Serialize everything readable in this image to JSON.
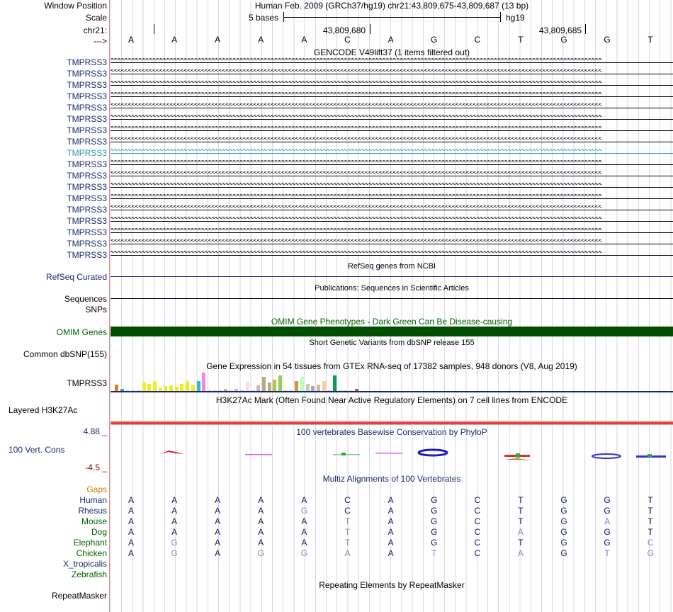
{
  "header": {
    "window_position_label": "Window Position",
    "scale_label": "Scale",
    "chrom_label": "chr21:",
    "strand_label": "--->",
    "title": "Human Feb. 2009 (GRCh37/hg19)   chr21:43,809,675-43,809,687 (13 bp)",
    "scale_text": "5 bases",
    "assembly": "hg19",
    "coord1": "43,809,680",
    "coord2": "43,809,685",
    "sequence": [
      "A",
      "A",
      "A",
      "A",
      "A",
      "C",
      "A",
      "G",
      "C",
      "T",
      "G",
      "G",
      "T"
    ]
  },
  "gencode": {
    "title": "GENCODE V49lift37 (1 items filtered out)",
    "gene": "TMPRSS3",
    "rows": [
      "TMPRSS3",
      "TMPRSS3",
      "TMPRSS3",
      "TMPRSS3",
      "TMPRSS3",
      "TMPRSS3",
      "TMPRSS3",
      "TMPRSS3",
      "TMPRSS3",
      "TMPRSS3",
      "TMPRSS3",
      "TMPRSS3",
      "TMPRSS3",
      "TMPRSS3",
      "TMPRSS3",
      "TMPRSS3",
      "TMPRSS3",
      "TMPRSS3"
    ],
    "highlighted_row": 8,
    "strand_glyphs": "<<<<<<<<<<<<<<<<<<<<<<<<<<<<<<<<<<<<<<<<<<<<<<<<<<<<<<<<<<<<<<<<<<<<<<<<<<<<<<<<<<<<<<<<<<<<<<<<<<<<<<<<<<<<<<<<<<<<<<<<<<<<<<<<<<<<<<<<<<<<<"
  },
  "refseq": {
    "title": "RefSeq genes from NCBI",
    "label": "RefSeq Curated"
  },
  "publications": {
    "title": "Publications: Sequences in Scientific Articles",
    "label": "Sequences"
  },
  "snps_label": "SNPs",
  "omim": {
    "title": "OMIM Gene Phenotypes - Dark Green Can Be Disease-causing",
    "label": "OMIM Genes",
    "color": "#004d00"
  },
  "dbsnp": {
    "title": "Short Genetic Variants from dbSNP release 155",
    "label": "Common dbSNP(155)"
  },
  "gtex": {
    "title": "Gene Expression in 54 tissues from GTEx RNA-seq of 17382 samples, 948 donors (V8, Aug 2019)",
    "label": "TMPRSS3",
    "bars": [
      {
        "h": 9,
        "c": "#e87a1c"
      },
      {
        "h": 3,
        "c": "#33aa88"
      },
      {
        "h": 1,
        "c": "#ccc"
      },
      {
        "h": 1,
        "c": "#ccc"
      },
      {
        "h": 1,
        "c": "#ccc"
      },
      {
        "h": 12,
        "c": "#eeee22"
      },
      {
        "h": 10,
        "c": "#eeee22"
      },
      {
        "h": 14,
        "c": "#eeee22"
      },
      {
        "h": 4,
        "c": "#eeee22"
      },
      {
        "h": 7,
        "c": "#eeee22"
      },
      {
        "h": 8,
        "c": "#eeee22"
      },
      {
        "h": 6,
        "c": "#eeee22"
      },
      {
        "h": 10,
        "c": "#eeee22"
      },
      {
        "h": 14,
        "c": "#eeee22"
      },
      {
        "h": 9,
        "c": "#eeee22"
      },
      {
        "h": 14,
        "c": "#33bbcc"
      },
      {
        "h": 26,
        "c": "#ee88ee"
      },
      {
        "h": 1,
        "c": "#ccc"
      },
      {
        "h": 1,
        "c": "#ccc"
      },
      {
        "h": 1,
        "c": "#ccc"
      },
      {
        "h": 3,
        "c": "#ccaaaa"
      },
      {
        "h": 1,
        "c": "#ccc"
      },
      {
        "h": 3,
        "c": "#ee99ee"
      },
      {
        "h": 1,
        "c": "#ccc"
      },
      {
        "h": 13,
        "c": "#ffdddd"
      },
      {
        "h": 1,
        "c": "#ccc"
      },
      {
        "h": 8,
        "c": "#ccbbaa"
      },
      {
        "h": 20,
        "c": "#bbaa88"
      },
      {
        "h": 12,
        "c": "#bbaa88"
      },
      {
        "h": 16,
        "c": "#aacc44"
      },
      {
        "h": 22,
        "c": "#99cc55"
      },
      {
        "h": 1,
        "c": "#ccc"
      },
      {
        "h": 1,
        "c": "#ccc"
      },
      {
        "h": 14,
        "c": "#cc9933"
      },
      {
        "h": 20,
        "c": "#bbffbb"
      },
      {
        "h": 10,
        "c": "#ccccaa"
      },
      {
        "h": 7,
        "c": "#aaaaaa"
      },
      {
        "h": 9,
        "c": "#ccbb99"
      },
      {
        "h": 14,
        "c": "#ffcc99"
      },
      {
        "h": 1,
        "c": "#ccc"
      },
      {
        "h": 22,
        "c": "#119955"
      },
      {
        "h": 1,
        "c": "#ccc"
      },
      {
        "h": 1,
        "c": "#ccc"
      },
      {
        "h": 1,
        "c": "#ccc"
      },
      {
        "h": 3,
        "c": "#aa44aa"
      }
    ]
  },
  "h3k27ac": {
    "title": "H3K27Ac Mark (Often Found Near Active Regulatory Elements) on 7 cell lines from ENCODE",
    "label": "Layered H3K27Ac",
    "color": "#e04040"
  },
  "phylop": {
    "title": "100 vertebrates Basewise Conservation by PhyloP",
    "label": "100 Vert. Cons",
    "max": "4.88 _",
    "min": "-4.5 _"
  },
  "multiz": {
    "title": "Multiz Alignments of 100 Vertebrates",
    "gaps_label": "Gaps",
    "species": [
      {
        "name": "Human",
        "color": "#1a2a6e",
        "bases": [
          "A",
          "A",
          "A",
          "A",
          "A",
          "C",
          "A",
          "G",
          "C",
          "T",
          "G",
          "G",
          "T"
        ],
        "faded": []
      },
      {
        "name": "Rhesus",
        "color": "#1a2a6e",
        "bases": [
          "A",
          "A",
          "A",
          "A",
          "G",
          "C",
          "A",
          "G",
          "C",
          "T",
          "G",
          "G",
          "T"
        ],
        "faded": [
          4
        ]
      },
      {
        "name": "Mouse",
        "color": "#006400",
        "bases": [
          "A",
          "A",
          "A",
          "A",
          "A",
          "T",
          "A",
          "G",
          "C",
          "T",
          "G",
          "A",
          "T"
        ],
        "faded": [
          5,
          11
        ]
      },
      {
        "name": "Dog",
        "color": "#006400",
        "bases": [
          "A",
          "A",
          "A",
          "A",
          "A",
          "T",
          "A",
          "G",
          "C",
          "A",
          "G",
          "G",
          "T"
        ],
        "faded": [
          5,
          9
        ]
      },
      {
        "name": "Elephant",
        "color": "#006400",
        "bases": [
          "A",
          "G",
          "A",
          "A",
          "A",
          "T",
          "A",
          "G",
          "C",
          "T",
          "G",
          "G",
          "C"
        ],
        "faded": [
          1,
          5,
          12
        ]
      },
      {
        "name": "Chicken",
        "color": "#006400",
        "bases": [
          "A",
          "G",
          "A",
          "G",
          "G",
          "A",
          "A",
          "T",
          "C",
          "A",
          "G",
          "T",
          "G"
        ],
        "faded": [
          1,
          3,
          4,
          5,
          7,
          9,
          11,
          12
        ]
      },
      {
        "name": "X_tropicalis",
        "color": "#1a2a6e",
        "bases": [],
        "faded": []
      },
      {
        "name": "Zebrafish",
        "color": "#006400",
        "bases": [],
        "faded": []
      }
    ]
  },
  "repeatmasker": {
    "title": "Repeating Elements by RepeatMasker",
    "label": "RepeatMasker"
  },
  "colors": {
    "navy": "#1a2a6e",
    "teal_row": "#2a9aa8",
    "label_green": "#006400",
    "gaps_orange": "#cc7a00",
    "phylop_red": "#8b0000"
  }
}
